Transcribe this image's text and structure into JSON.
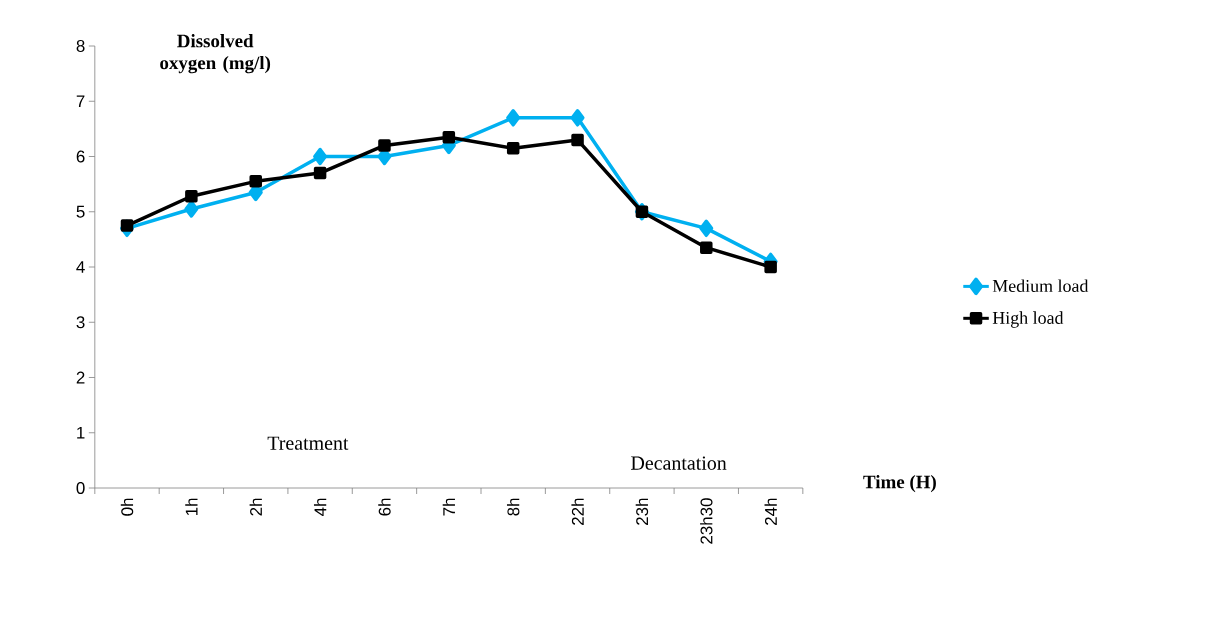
{
  "chart_data": {
    "type": "line",
    "xlabel": "Time (H)",
    "ylabel": "Dissolved oxygen (mg/l)",
    "categories": [
      "0h",
      "1h",
      "2h",
      "4h",
      "6h",
      "7h",
      "8h",
      "22h",
      "23h",
      "23h30",
      "24h"
    ],
    "series": [
      {
        "name": "Medium load",
        "color": "#00b0f0",
        "marker": "diamond",
        "values": [
          4.7,
          5.05,
          5.35,
          6.0,
          6.0,
          6.2,
          6.7,
          6.7,
          5.0,
          4.7,
          4.1
        ]
      },
      {
        "name": "High load",
        "color": "#000000",
        "marker": "square",
        "values": [
          4.75,
          5.28,
          5.55,
          5.7,
          6.2,
          6.35,
          6.15,
          6.3,
          5.0,
          4.35,
          4.0
        ]
      }
    ],
    "ylim": [
      0,
      8
    ],
    "yticks": [
      0,
      1,
      2,
      3,
      4,
      5,
      6,
      7,
      8
    ],
    "annotations": [
      "Treatment",
      "Decantation"
    ],
    "legend": "right",
    "grid": false,
    "line_style": "solid"
  }
}
